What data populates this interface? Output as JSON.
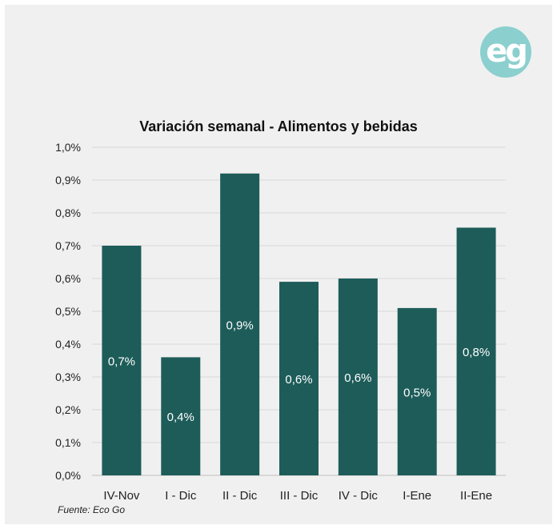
{
  "logo": {
    "text": "eg"
  },
  "source_note": "Fuente: Eco Go",
  "colors": {
    "bar": "#1d5c59",
    "grid": "#d9d9d9",
    "label": "#ffffff"
  },
  "chart_data": {
    "type": "bar",
    "title": "Variación semanal - Alimentos y bebidas",
    "xlabel": "",
    "ylabel": "",
    "categories": [
      "IV-Nov",
      "I - Dic",
      "II - Dic",
      "III - Dic",
      "IV - Dic",
      "I-Ene",
      "II-Ene"
    ],
    "values": [
      0.7,
      0.36,
      0.92,
      0.59,
      0.6,
      0.51,
      0.755
    ],
    "data_labels": [
      "0,7%",
      "0,4%",
      "0,9%",
      "0,6%",
      "0,6%",
      "0,5%",
      "0,8%"
    ],
    "yticks": [
      "0,0%",
      "0,1%",
      "0,2%",
      "0,3%",
      "0,4%",
      "0,5%",
      "0,6%",
      "0,7%",
      "0,8%",
      "0,9%",
      "1,0%"
    ],
    "ylim": [
      0,
      1.0
    ],
    "grid": true,
    "legend": "none"
  }
}
